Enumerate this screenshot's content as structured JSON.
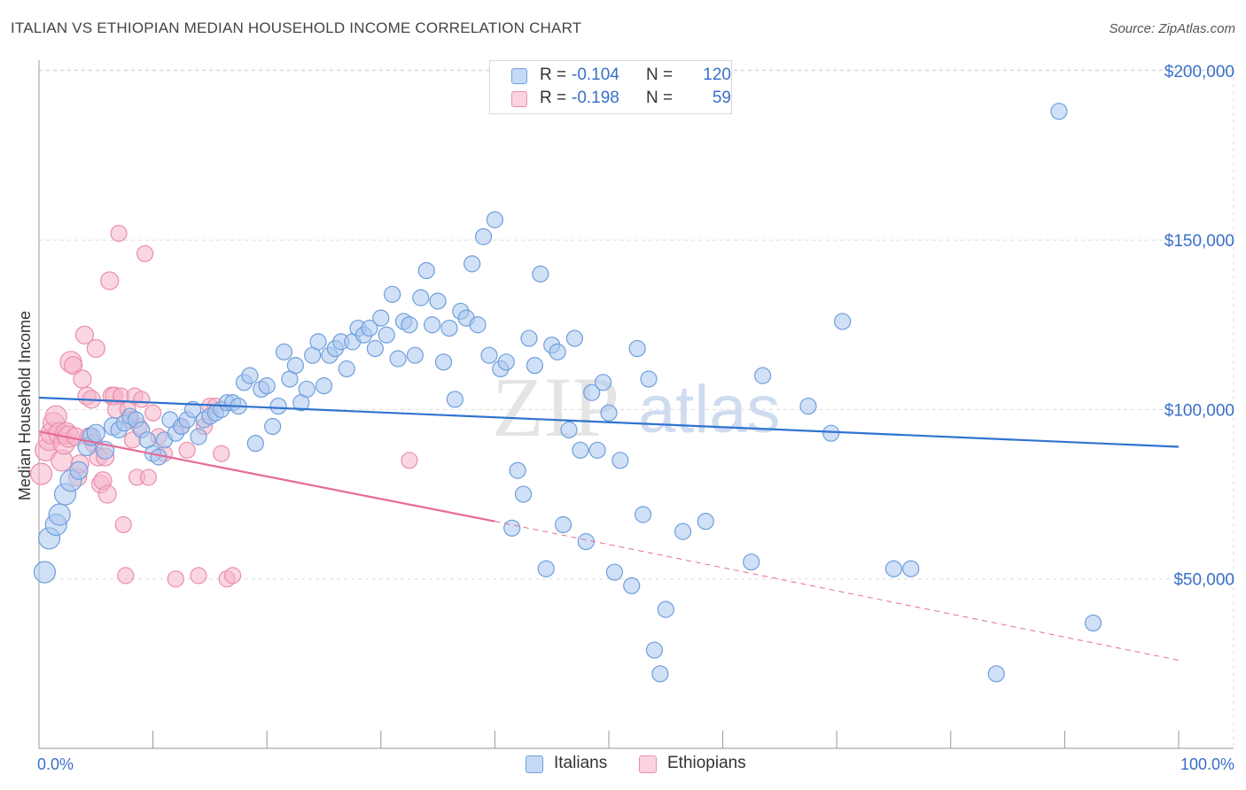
{
  "header": {
    "title": "ITALIAN VS ETHIOPIAN MEDIAN HOUSEHOLD INCOME CORRELATION CHART",
    "source": "Source: ZipAtlas.com"
  },
  "watermark": {
    "zip": "ZIP",
    "atlas": "atlas"
  },
  "stats_legend": {
    "rows": [
      {
        "r_label": "R =",
        "r_value": "-0.104",
        "n_label": "N =",
        "n_value": "120",
        "color": "#a9c7ef"
      },
      {
        "r_label": "R =",
        "r_value": "-0.198",
        "n_label": "N =",
        "n_value": "59",
        "color": "#f6b5c8"
      }
    ]
  },
  "chart_data": {
    "type": "scatter",
    "title": "ITALIAN VS ETHIOPIAN MEDIAN HOUSEHOLD INCOME CORRELATION CHART",
    "xlabel": "",
    "ylabel": "Median Household Income",
    "xlim": [
      0,
      100
    ],
    "ylim": [
      0,
      210000
    ],
    "x_tick_labels": [
      "0.0%",
      "100.0%"
    ],
    "y_ticks": [
      50000,
      100000,
      150000,
      200000
    ],
    "y_tick_labels": [
      "$50,000",
      "$100,000",
      "$150,000",
      "$200,000"
    ],
    "grid": true,
    "legend_position": "bottom-center",
    "series": [
      {
        "name": "Italians",
        "color": "#a9c7ef",
        "stroke": "#6f9fdc",
        "trend": {
          "x": [
            0,
            100
          ],
          "y": [
            103500,
            89000
          ],
          "color": "#2f73cf"
        },
        "points": [
          [
            0.5,
            52000
          ],
          [
            0.9,
            62000
          ],
          [
            1.5,
            66000
          ],
          [
            1.8,
            69000
          ],
          [
            2.3,
            75000
          ],
          [
            2.8,
            79000
          ],
          [
            3.5,
            82000
          ],
          [
            4.2,
            89000
          ],
          [
            4.6,
            92000
          ],
          [
            5.0,
            93000
          ],
          [
            5.8,
            88000
          ],
          [
            6.5,
            95000
          ],
          [
            7.0,
            94000
          ],
          [
            7.5,
            96000
          ],
          [
            8.0,
            98000
          ],
          [
            8.5,
            97000
          ],
          [
            9.0,
            94000
          ],
          [
            9.5,
            91000
          ],
          [
            10.0,
            87000
          ],
          [
            10.5,
            86000
          ],
          [
            11.0,
            91000
          ],
          [
            11.5,
            97000
          ],
          [
            12.0,
            93000
          ],
          [
            12.5,
            95000
          ],
          [
            13.0,
            97000
          ],
          [
            13.5,
            100000
          ],
          [
            14.0,
            92000
          ],
          [
            14.5,
            97000
          ],
          [
            15.0,
            98000
          ],
          [
            15.5,
            99000
          ],
          [
            16.0,
            100000
          ],
          [
            16.5,
            102000
          ],
          [
            17.0,
            102000
          ],
          [
            17.5,
            101000
          ],
          [
            18.0,
            108000
          ],
          [
            18.5,
            110000
          ],
          [
            19.0,
            90000
          ],
          [
            19.5,
            106000
          ],
          [
            20.0,
            107000
          ],
          [
            20.5,
            95000
          ],
          [
            21.0,
            101000
          ],
          [
            21.5,
            117000
          ],
          [
            22.0,
            109000
          ],
          [
            22.5,
            113000
          ],
          [
            23.0,
            102000
          ],
          [
            23.5,
            106000
          ],
          [
            24.0,
            116000
          ],
          [
            24.5,
            120000
          ],
          [
            25.0,
            107000
          ],
          [
            25.5,
            116000
          ],
          [
            26.0,
            118000
          ],
          [
            26.5,
            120000
          ],
          [
            27.0,
            112000
          ],
          [
            27.5,
            120000
          ],
          [
            28.0,
            124000
          ],
          [
            28.5,
            122000
          ],
          [
            29.0,
            124000
          ],
          [
            29.5,
            118000
          ],
          [
            30.0,
            127000
          ],
          [
            30.5,
            122000
          ],
          [
            31.0,
            134000
          ],
          [
            31.5,
            115000
          ],
          [
            32.0,
            126000
          ],
          [
            32.5,
            125000
          ],
          [
            33.0,
            116000
          ],
          [
            33.5,
            133000
          ],
          [
            34.0,
            141000
          ],
          [
            34.5,
            125000
          ],
          [
            35.0,
            132000
          ],
          [
            35.5,
            114000
          ],
          [
            36.0,
            124000
          ],
          [
            36.5,
            103000
          ],
          [
            37.0,
            129000
          ],
          [
            37.5,
            127000
          ],
          [
            38.0,
            143000
          ],
          [
            38.5,
            125000
          ],
          [
            39.0,
            151000
          ],
          [
            39.5,
            116000
          ],
          [
            40.0,
            156000
          ],
          [
            40.5,
            112000
          ],
          [
            41.0,
            114000
          ],
          [
            41.5,
            65000
          ],
          [
            42.0,
            82000
          ],
          [
            42.5,
            75000
          ],
          [
            43.0,
            121000
          ],
          [
            43.5,
            113000
          ],
          [
            44.0,
            140000
          ],
          [
            44.5,
            53000
          ],
          [
            45.0,
            119000
          ],
          [
            45.5,
            117000
          ],
          [
            46.0,
            66000
          ],
          [
            46.5,
            94000
          ],
          [
            47.0,
            121000
          ],
          [
            47.5,
            88000
          ],
          [
            48.0,
            61000
          ],
          [
            48.5,
            105000
          ],
          [
            49.0,
            88000
          ],
          [
            49.5,
            108000
          ],
          [
            50.0,
            99000
          ],
          [
            50.5,
            52000
          ],
          [
            51.0,
            85000
          ],
          [
            52.0,
            48000
          ],
          [
            52.5,
            118000
          ],
          [
            53.0,
            69000
          ],
          [
            53.5,
            109000
          ],
          [
            54.0,
            29000
          ],
          [
            54.5,
            22000
          ],
          [
            55.0,
            41000
          ],
          [
            56.5,
            64000
          ],
          [
            58.5,
            67000
          ],
          [
            62.5,
            55000
          ],
          [
            63.5,
            110000
          ],
          [
            67.5,
            101000
          ],
          [
            69.5,
            93000
          ],
          [
            70.5,
            126000
          ],
          [
            75.0,
            53000
          ],
          [
            76.5,
            53000
          ],
          [
            84.0,
            22000
          ],
          [
            89.5,
            188000
          ],
          [
            92.5,
            37000
          ]
        ]
      },
      {
        "name": "Ethiopians",
        "color": "#f6b5c8",
        "stroke": "#ea8fab",
        "trend": {
          "x": [
            0,
            40
          ],
          "y": [
            93500,
            67000
          ],
          "color": "#e86a96",
          "dashed_to": [
            100,
            26000
          ]
        },
        "points": [
          [
            0.2,
            81000
          ],
          [
            0.6,
            88000
          ],
          [
            0.9,
            91000
          ],
          [
            1.1,
            93000
          ],
          [
            1.3,
            96000
          ],
          [
            1.5,
            98000
          ],
          [
            1.8,
            93000
          ],
          [
            2.0,
            85000
          ],
          [
            2.2,
            90000
          ],
          [
            2.4,
            93000
          ],
          [
            2.6,
            92000
          ],
          [
            2.8,
            114000
          ],
          [
            3.0,
            113000
          ],
          [
            3.2,
            92000
          ],
          [
            3.4,
            80000
          ],
          [
            3.6,
            84000
          ],
          [
            3.8,
            109000
          ],
          [
            4.0,
            122000
          ],
          [
            4.2,
            104000
          ],
          [
            4.4,
            92000
          ],
          [
            4.6,
            103000
          ],
          [
            4.8,
            90000
          ],
          [
            5.0,
            118000
          ],
          [
            5.2,
            86000
          ],
          [
            5.4,
            78000
          ],
          [
            5.6,
            79000
          ],
          [
            5.8,
            86000
          ],
          [
            6.0,
            75000
          ],
          [
            6.2,
            138000
          ],
          [
            6.4,
            104000
          ],
          [
            6.6,
            104000
          ],
          [
            6.8,
            100000
          ],
          [
            7.0,
            152000
          ],
          [
            7.2,
            104000
          ],
          [
            7.4,
            66000
          ],
          [
            7.6,
            51000
          ],
          [
            7.8,
            100000
          ],
          [
            8.0,
            97000
          ],
          [
            8.2,
            91000
          ],
          [
            8.4,
            104000
          ],
          [
            8.6,
            80000
          ],
          [
            8.8,
            95000
          ],
          [
            9.0,
            103000
          ],
          [
            9.3,
            146000
          ],
          [
            9.6,
            80000
          ],
          [
            10.0,
            99000
          ],
          [
            10.5,
            92000
          ],
          [
            11.0,
            87000
          ],
          [
            12.0,
            50000
          ],
          [
            12.5,
            95000
          ],
          [
            13.0,
            88000
          ],
          [
            14.0,
            51000
          ],
          [
            14.5,
            95000
          ],
          [
            15.0,
            101000
          ],
          [
            15.5,
            101000
          ],
          [
            16.0,
            87000
          ],
          [
            16.5,
            50000
          ],
          [
            17.0,
            51000
          ],
          [
            32.5,
            85000
          ]
        ]
      }
    ]
  }
}
